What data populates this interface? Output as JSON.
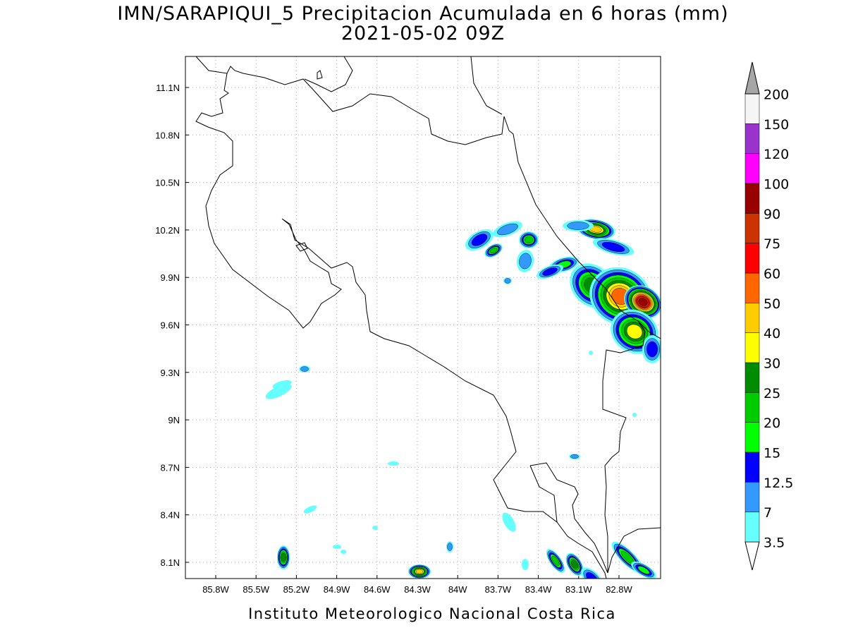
{
  "title": "IMN/SARAPIQUI_5 Precipitacion Acumulada en 6 horas (mm)",
  "subtitle": "2021-05-02 09Z",
  "map": {
    "lon_ticks": [
      {
        "value": -85.8,
        "label": "85.8W"
      },
      {
        "value": -85.5,
        "label": "85.5W"
      },
      {
        "value": -85.2,
        "label": "85.2W"
      },
      {
        "value": -84.9,
        "label": "84.9W"
      },
      {
        "value": -84.6,
        "label": "84.6W"
      },
      {
        "value": -84.3,
        "label": "84.3W"
      },
      {
        "value": -84.0,
        "label": "84W"
      },
      {
        "value": -83.7,
        "label": "83.7W"
      },
      {
        "value": -83.4,
        "label": "83.4W"
      },
      {
        "value": -83.1,
        "label": "83.1W"
      },
      {
        "value": -82.8,
        "label": "82.8W"
      }
    ],
    "lat_ticks": [
      {
        "value": 8.1,
        "label": "8.1N"
      },
      {
        "value": 8.4,
        "label": "8.4N"
      },
      {
        "value": 8.7,
        "label": "8.7N"
      },
      {
        "value": 9.0,
        "label": "9N"
      },
      {
        "value": 9.3,
        "label": "9.3N"
      },
      {
        "value": 9.6,
        "label": "9.6N"
      },
      {
        "value": 9.9,
        "label": "9.9N"
      },
      {
        "value": 10.2,
        "label": "10.2N"
      },
      {
        "value": 10.5,
        "label": "10.5N"
      },
      {
        "value": 10.8,
        "label": "10.8N"
      },
      {
        "value": 11.1,
        "label": "11.1N"
      }
    ],
    "grid": true
  },
  "colorbar": {
    "levels": [
      3.5,
      7,
      12.5,
      15,
      20,
      25,
      30,
      40,
      50,
      60,
      75,
      90,
      100,
      120,
      150,
      200
    ],
    "colors": [
      "#ffffff",
      "#66ffff",
      "#3399ff",
      "#0000ff",
      "#00ff00",
      "#00cc00",
      "#008c00",
      "#ffff00",
      "#ffcc00",
      "#ff6600",
      "#ff0000",
      "#cc3300",
      "#990000",
      "#ff00ff",
      "#9933cc",
      "#f5f5f5",
      "#a6a6a6"
    ]
  },
  "footer": "Instituto Meteorologico Nacional Costa Rica"
}
